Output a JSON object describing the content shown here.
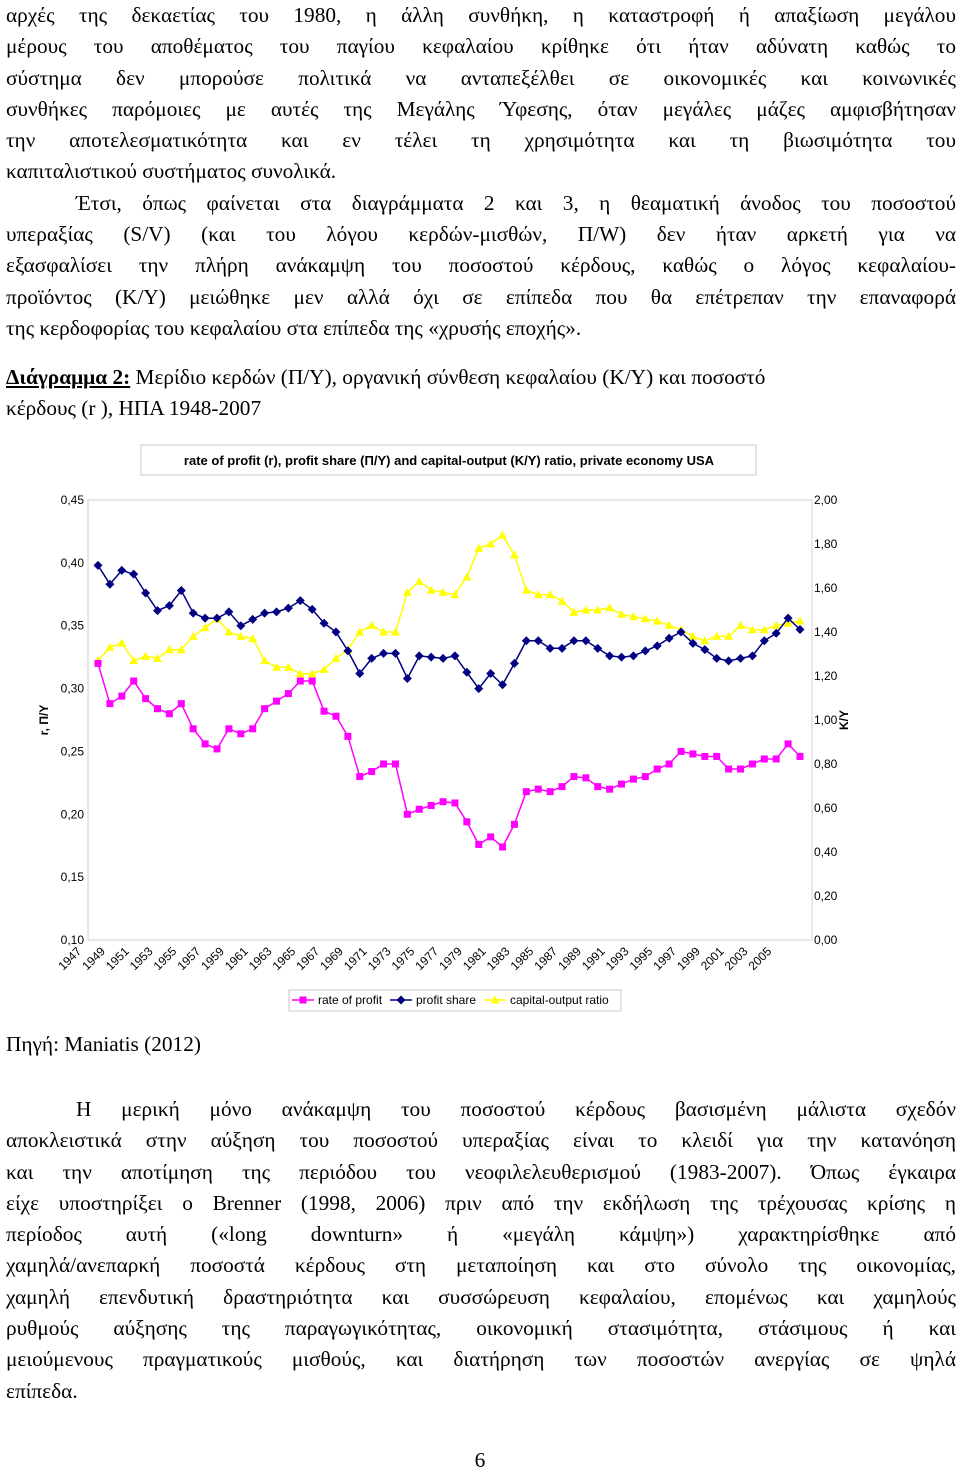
{
  "paragraph1": {
    "lines": [
      "αρχές της δεκαετίας του 1980, η άλλη συνθήκη, η καταστροφή ή απαξίωση μεγάλου",
      "μέρους του αποθέματος του παγίου κεφαλαίου κρίθηκε ότι ήταν αδύνατη καθώς το",
      "σύστημα δεν μπορούσε πολιτικά να ανταπεξέλθει σε οικονομικές και κοινωνικές",
      "συνθήκες παρόμοιες με αυτές της Μεγάλης Ύφεσης, όταν μεγάλες μάζες αμφισβήτησαν",
      "την αποτελεσματικότητα και εν τέλει τη χρησιμότητα και τη βιωσιμότητα του",
      "καπιταλιστικού συστήματος συνολικά.",
      "Έτσι, όπως φαίνεται στα διαγράμματα 2 και 3, η θεαματική άνοδος του ποσοστού",
      "υπεραξίας (S/V) (και του λόγου κερδών-μισθών, Π/W) δεν ήταν αρκετή για να",
      "εξασφαλίσει την πλήρη ανάκαμψη του ποσοστού κέρδους, καθώς ο λόγος κεφαλαίου-",
      "προϊόντος (K/Y) μειώθηκε μεν αλλά όχι σε επίπεδα που θα επέτρεπαν την επαναφορά",
      "της κερδοφορίας του κεφαλαίου στα επίπεδα της «χρυσής εποχής»."
    ]
  },
  "caption": {
    "label": "Διάγραμμα 2:",
    "text": " Μερίδιο κερδών (Π/Y), οργανική σύνθεση κεφαλαίου (K/Y) και ποσοστό",
    "text2": "κέρδους (r ), ΗΠΑ 1948-2007"
  },
  "chart_data": {
    "type": "line",
    "title": "rate of profit (r), profit share (Π/Y) and capital-output (K/Y) ratio, private economy USA",
    "ylabel": "r, Π/Y",
    "y2label": "K/Y",
    "ylim": [
      0.1,
      0.45
    ],
    "y2lim": [
      0.0,
      2.0
    ],
    "yticks": [
      "0,10",
      "0,15",
      "0,20",
      "0,25",
      "0,30",
      "0,35",
      "0,40",
      "0,45"
    ],
    "y2ticks": [
      "0,00",
      "0,20",
      "0,40",
      "0,60",
      "0,80",
      "1,00",
      "1,20",
      "1,40",
      "1,60",
      "1,80",
      "2,00"
    ],
    "xtick_labels": [
      "1947",
      "1949",
      "1951",
      "1953",
      "1955",
      "1957",
      "1959",
      "1961",
      "1963",
      "1965",
      "1967",
      "1969",
      "1971",
      "1973",
      "1975",
      "1977",
      "1979",
      "1981",
      "1983",
      "1985",
      "1987",
      "1989",
      "1991",
      "1993",
      "1995",
      "1997",
      "1999",
      "2001",
      "2003",
      "2005"
    ],
    "x": [
      1948,
      1949,
      1950,
      1951,
      1952,
      1953,
      1954,
      1955,
      1956,
      1957,
      1958,
      1959,
      1960,
      1961,
      1962,
      1963,
      1964,
      1965,
      1966,
      1967,
      1968,
      1969,
      1970,
      1971,
      1972,
      1973,
      1974,
      1975,
      1976,
      1977,
      1978,
      1979,
      1980,
      1981,
      1982,
      1983,
      1984,
      1985,
      1986,
      1987,
      1988,
      1989,
      1990,
      1991,
      1992,
      1993,
      1994,
      1995,
      1996,
      1997,
      1998,
      1999,
      2000,
      2001,
      2002,
      2003,
      2004,
      2005,
      2006,
      2007
    ],
    "series": [
      {
        "name": "rate of profit",
        "axis": "left",
        "color": "#ff00ff",
        "marker": "square",
        "values": [
          0.32,
          0.288,
          0.294,
          0.306,
          0.292,
          0.284,
          0.28,
          0.288,
          0.268,
          0.256,
          0.252,
          0.268,
          0.264,
          0.268,
          0.284,
          0.29,
          0.296,
          0.306,
          0.306,
          0.282,
          0.278,
          0.262,
          0.23,
          0.234,
          0.24,
          0.24,
          0.2,
          0.204,
          0.207,
          0.21,
          0.209,
          0.194,
          0.176,
          0.182,
          0.174,
          0.192,
          0.218,
          0.22,
          0.218,
          0.222,
          0.23,
          0.229,
          0.222,
          0.22,
          0.224,
          0.228,
          0.23,
          0.236,
          0.24,
          0.25,
          0.248,
          0.246,
          0.246,
          0.236,
          0.236,
          0.24,
          0.244,
          0.244,
          0.256,
          0.246
        ]
      },
      {
        "name": "profit share",
        "axis": "left",
        "color": "#000080",
        "marker": "diamond",
        "values": [
          0.398,
          0.383,
          0.394,
          0.391,
          0.376,
          0.362,
          0.366,
          0.378,
          0.36,
          0.356,
          0.356,
          0.361,
          0.35,
          0.355,
          0.36,
          0.361,
          0.364,
          0.37,
          0.363,
          0.352,
          0.345,
          0.33,
          0.312,
          0.324,
          0.328,
          0.328,
          0.308,
          0.326,
          0.325,
          0.324,
          0.326,
          0.313,
          0.3,
          0.312,
          0.303,
          0.32,
          0.338,
          0.338,
          0.332,
          0.332,
          0.338,
          0.338,
          0.332,
          0.326,
          0.325,
          0.326,
          0.33,
          0.334,
          0.34,
          0.345,
          0.336,
          0.331,
          0.324,
          0.322,
          0.324,
          0.326,
          0.338,
          0.344,
          0.356,
          0.347
        ]
      },
      {
        "name": "capital-output ratio",
        "axis": "right",
        "color": "#ffff00",
        "marker": "triangle",
        "values": [
          1.27,
          1.33,
          1.35,
          1.27,
          1.29,
          1.28,
          1.32,
          1.32,
          1.38,
          1.42,
          1.46,
          1.4,
          1.38,
          1.37,
          1.27,
          1.24,
          1.24,
          1.21,
          1.21,
          1.23,
          1.28,
          1.32,
          1.4,
          1.43,
          1.4,
          1.4,
          1.58,
          1.63,
          1.59,
          1.58,
          1.57,
          1.65,
          1.78,
          1.8,
          1.84,
          1.75,
          1.59,
          1.57,
          1.57,
          1.54,
          1.49,
          1.5,
          1.5,
          1.51,
          1.48,
          1.47,
          1.46,
          1.45,
          1.43,
          1.41,
          1.38,
          1.36,
          1.38,
          1.38,
          1.43,
          1.41,
          1.41,
          1.43,
          1.44,
          1.45
        ]
      }
    ],
    "legend_position": "bottom"
  },
  "source": "Πηγή: Maniatis (2012)",
  "paragraph2": {
    "lines": [
      "Η μερική μόνο ανάκαμψη του ποσοστού κέρδους βασισμένη μάλιστα σχεδόν",
      "αποκλειστικά στην αύξηση του ποσοστού υπεραξίας είναι το κλειδί για την κατανόηση",
      "και την αποτίμηση της περιόδου του νεοφιλελευθερισμού (1983-2007). Όπως έγκαιρα",
      "είχε υποστηρίξει ο Brenner (1998, 2006) πριν από την εκδήλωση της τρέχουσας κρίσης η",
      "περίοδος αυτή («long downturn» ή «μεγάλη κάμψη») χαρακτηρίσθηκε από",
      "χαμηλά/ανεπαρκή ποσοστά κέρδους στη μεταποίηση και στο σύνολο της οικονομίας,",
      "χαμηλή επενδυτική δραστηριότητα και συσσώρευση κεφαλαίου, επομένως και χαμηλούς",
      "ρυθμούς αύξησης της παραγωγικότητας, οικονομική στασιμότητα, στάσιμους ή και",
      "μειούμενους πραγματικούς μισθούς, και διατήρηση των ποσοστών ανεργίας σε ψηλά",
      "επίπεδα."
    ]
  },
  "page_number": "6"
}
